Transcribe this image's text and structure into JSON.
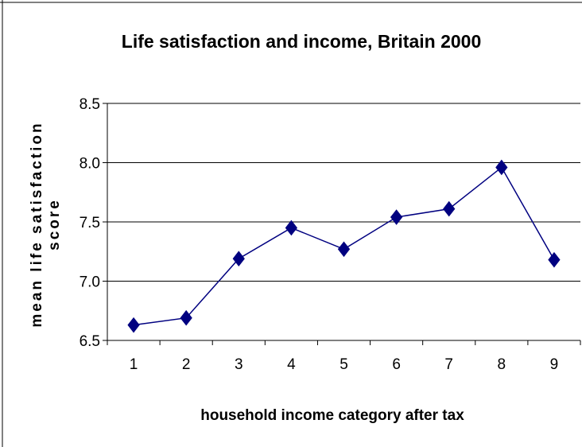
{
  "chart_data": {
    "type": "line",
    "title": "Life satisfaction and income, Britain 2000",
    "xlabel": "household income category after tax",
    "ylabel": [
      "mean life satisfaction",
      "score"
    ],
    "categories": [
      "1",
      "2",
      "3",
      "4",
      "5",
      "6",
      "7",
      "8",
      "9"
    ],
    "series": [
      {
        "values": [
          6.63,
          6.69,
          7.19,
          7.45,
          7.27,
          7.54,
          7.61,
          7.96,
          7.18
        ]
      }
    ],
    "ylim": [
      6.5,
      8.5
    ],
    "yticks": [
      "6.5",
      "7.0",
      "7.5",
      "8.0",
      "8.5"
    ],
    "grid": true,
    "colors": {
      "line": "#000080",
      "marker": "#000080",
      "grid": "#000000"
    }
  }
}
